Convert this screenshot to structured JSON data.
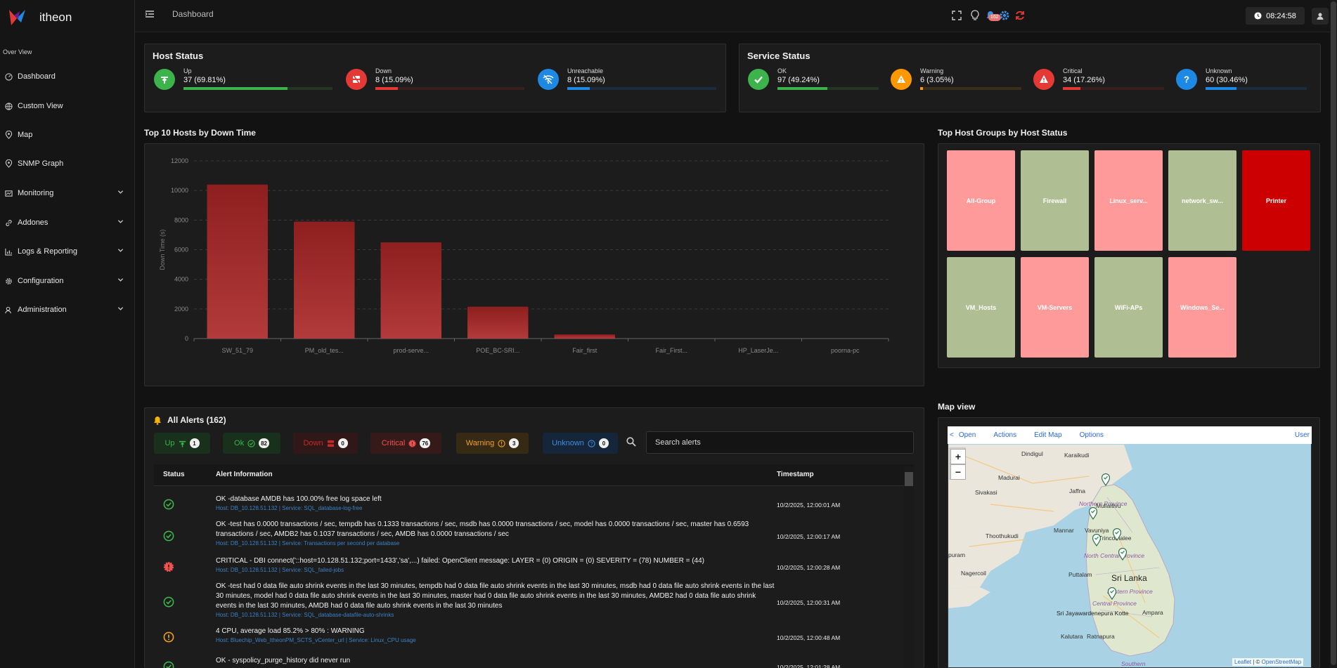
{
  "brand": {
    "name": "itheon"
  },
  "sidebar": {
    "section": "Over View",
    "items": [
      {
        "label": "Dashboard",
        "icon": "dashboard-icon",
        "chevron": false
      },
      {
        "label": "Custom View",
        "icon": "globe-icon",
        "chevron": false
      },
      {
        "label": "Map",
        "icon": "map-pin-icon",
        "chevron": false
      },
      {
        "label": "SNMP Graph",
        "icon": "map-pin-icon",
        "chevron": false
      },
      {
        "label": "Monitoring",
        "icon": "monitor-icon",
        "chevron": true
      },
      {
        "label": "Addones",
        "icon": "link-icon",
        "chevron": true
      },
      {
        "label": "Logs & Reporting",
        "icon": "chart-icon",
        "chevron": true
      },
      {
        "label": "Configuration",
        "icon": "gear-icon",
        "chevron": true
      },
      {
        "label": "Administration",
        "icon": "user-admin-icon",
        "chevron": true
      }
    ]
  },
  "topbar": {
    "breadcrumb": "Dashboard",
    "notifications": "162",
    "time": "08:24:58"
  },
  "host_status": {
    "title": "Host Status",
    "items": [
      {
        "label": "Up",
        "value": "37 (69.81%)",
        "fraction": 0.6981,
        "color": "#3cb44b",
        "track": "#233523"
      },
      {
        "label": "Down",
        "value": "8 (15.09%)",
        "fraction": 0.1509,
        "color": "#e53935",
        "track": "#3a1f1f"
      },
      {
        "label": "Unreachable",
        "value": "8 (15.09%)",
        "fraction": 0.1509,
        "color": "#1e88e5",
        "track": "#1c2a3d"
      }
    ]
  },
  "service_status": {
    "title": "Service Status",
    "items": [
      {
        "label": "OK",
        "value": "97 (49.24%)",
        "fraction": 0.4924,
        "color": "#3cb44b",
        "track": "#233523"
      },
      {
        "label": "Warning",
        "value": "6 (3.05%)",
        "fraction": 0.0305,
        "color": "#ff9800",
        "track": "#3a2e1a"
      },
      {
        "label": "Critical",
        "value": "34 (17.26%)",
        "fraction": 0.1726,
        "color": "#e53935",
        "track": "#3a1f1f"
      },
      {
        "label": "Unknown",
        "value": "60 (30.46%)",
        "fraction": 0.3046,
        "color": "#1e88e5",
        "track": "#1c2a3d"
      }
    ]
  },
  "down_chart": {
    "title": "Top 10 Hosts by Down Time"
  },
  "chart_data": {
    "type": "bar",
    "title": "Top 10 Hosts by Down Time",
    "ylabel": "Down Time (s)",
    "xlabel": "",
    "ylim": [
      0,
      12000
    ],
    "yticks": [
      0,
      2000,
      4000,
      6000,
      8000,
      10000,
      12000
    ],
    "categories": [
      "SW_51_79",
      "PM_old_tes...",
      "prod-serve...",
      "POE_BC-SRI...",
      "Fair_first",
      "Fair_First...",
      "HP_LaserJe...",
      "poorna-pc"
    ],
    "values": [
      10400,
      7900,
      6500,
      2150,
      280,
      0,
      0,
      0
    ],
    "grid": true,
    "legend": "none"
  },
  "host_groups": {
    "title": "Top Host Groups by Host Status",
    "items": [
      {
        "label": "All-Group",
        "color": "#ff9a9a"
      },
      {
        "label": "Firewall",
        "color": "#b0bf93"
      },
      {
        "label": "Linux_serv...",
        "color": "#ff9a9a"
      },
      {
        "label": "network_sw...",
        "color": "#b0bf93"
      },
      {
        "label": "Printer",
        "color": "#cc0000"
      },
      {
        "label": "VM_Hosts",
        "color": "#b0bf93"
      },
      {
        "label": "VM-Servers",
        "color": "#ff9a9a"
      },
      {
        "label": "WiFi-APs",
        "color": "#b0bf93"
      },
      {
        "label": "Windows_Se...",
        "color": "#ff9a9a"
      }
    ]
  },
  "alerts": {
    "title": "All Alerts (162)",
    "filters": [
      {
        "label": "Up",
        "count": "1",
        "color": "#3cb44b",
        "bg": "#18301c",
        "icon": "up-arrow-icon"
      },
      {
        "label": "Ok",
        "count": "82",
        "color": "#3cb44b",
        "bg": "#18301c",
        "icon": "check-circle-icon"
      },
      {
        "label": "Down",
        "count": "0",
        "color": "#c62828",
        "bg": "#301818",
        "icon": "server-down-icon"
      },
      {
        "label": "Critical",
        "count": "76",
        "color": "#ef5350",
        "bg": "#361a1a",
        "icon": "critical-icon"
      },
      {
        "label": "Warning",
        "count": "3",
        "color": "#f0a020",
        "bg": "#362a14",
        "icon": "warning-circle-icon"
      },
      {
        "label": "Unknown",
        "count": "0",
        "color": "#3d8de0",
        "bg": "#16263a",
        "icon": "question-circle-icon"
      }
    ],
    "search_placeholder": "Search alerts",
    "columns": {
      "status": "Status",
      "info": "Alert Information",
      "time": "Timestamp"
    },
    "rows": [
      {
        "status": "ok",
        "message": "OK -database AMDB has 100.00% free log space left",
        "host": "Host: DB_10.128.51.132 | Service: SQL_database-log-free",
        "time": "10/2/2025, 12:00:01 AM"
      },
      {
        "status": "ok",
        "message": "OK -test has 0.0000 transactions / sec, tempdb has 0.1333 transactions / sec, msdb has 0.0000 transactions / sec, model has 0.0000 transactions / sec, master has 0.6593 transactions / sec, AMDB2 has 0.1037 transactions / sec, AMDB has 0.0000 transactions / sec",
        "host": "Host: DB_10.128.51.132 | Service: Transactions per second per database",
        "time": "10/2/2025, 12:00:17 AM"
      },
      {
        "status": "critical",
        "message": "CRITICAL - DBI connect('::host=10.128.51.132;port=1433','sa',...) failed: OpenClient message: LAYER = (0) ORIGIN = (0) SEVERITY = (78) NUMBER = (44)",
        "host": "Host: DB_10.128.51.132 | Service: SQL_failed-jobs",
        "time": "10/2/2025, 12:00:28 AM"
      },
      {
        "status": "ok",
        "message": "OK -test had 0 data file auto shrink events in the last 30 minutes, tempdb had 0 data file auto shrink events in the last 30 minutes, msdb had 0 data file auto shrink events in the last 30 minutes, model had 0 data file auto shrink events in the last 30 minutes, master had 0 data file auto shrink events in the last 30 minutes, AMDB2 had 0 data file auto shrink events in the last 30 minutes, AMDB had 0 data file auto shrink events in the last 30 minutes",
        "host": "Host: DB_10.128.51.132 | Service: SQL_database-datafile-auto-shrinks",
        "time": "10/2/2025, 12:00:31 AM"
      },
      {
        "status": "warning",
        "message": "4 CPU, average load 85.2% > 80% : WARNING",
        "host": "Host: Bluechip_Web_ItheonPM_SCTS_vCenter_url | Service: Linux_CPU usage",
        "time": "10/2/2025, 12:00:48 AM"
      },
      {
        "status": "ok",
        "message": "OK - syspolicy_purge_history did never run",
        "host": "",
        "time": "10/2/2025, 12:01:28 AM"
      }
    ]
  },
  "map_view": {
    "title": "Map view",
    "toolbar": {
      "back": "<",
      "open": "Open",
      "actions": "Actions",
      "edit": "Edit Map",
      "options": "Options",
      "user": "User"
    },
    "zoom_in": "+",
    "zoom_out": "−",
    "attribution": {
      "leaflet": "Leaflet",
      "sep": " | © ",
      "osm": "OpenStreetMap"
    },
    "labels": [
      {
        "text": "Dindigul"
      },
      {
        "text": "Karaikudi"
      },
      {
        "text": "Madurai"
      },
      {
        "text": "Sivakasi"
      },
      {
        "text": "Thoothukudi"
      },
      {
        "text": "puram"
      },
      {
        "text": "Nagercoil"
      },
      {
        "text": "Jaffna"
      },
      {
        "text": "Northern Province"
      },
      {
        "text": "Mullaitivu"
      },
      {
        "text": "Mannar"
      },
      {
        "text": "Vavuniya"
      },
      {
        "text": "Trincomalee"
      },
      {
        "text": "North Central Province"
      },
      {
        "text": "Puttalam"
      },
      {
        "text": "Sri Lanka"
      },
      {
        "text": "Eastern Province"
      },
      {
        "text": "Central Province"
      },
      {
        "text": "Sri Jayawardenepura Kotte"
      },
      {
        "text": "Ampara"
      },
      {
        "text": "Kalutara"
      },
      {
        "text": "Ratnapura"
      },
      {
        "text": "Southern"
      }
    ]
  }
}
